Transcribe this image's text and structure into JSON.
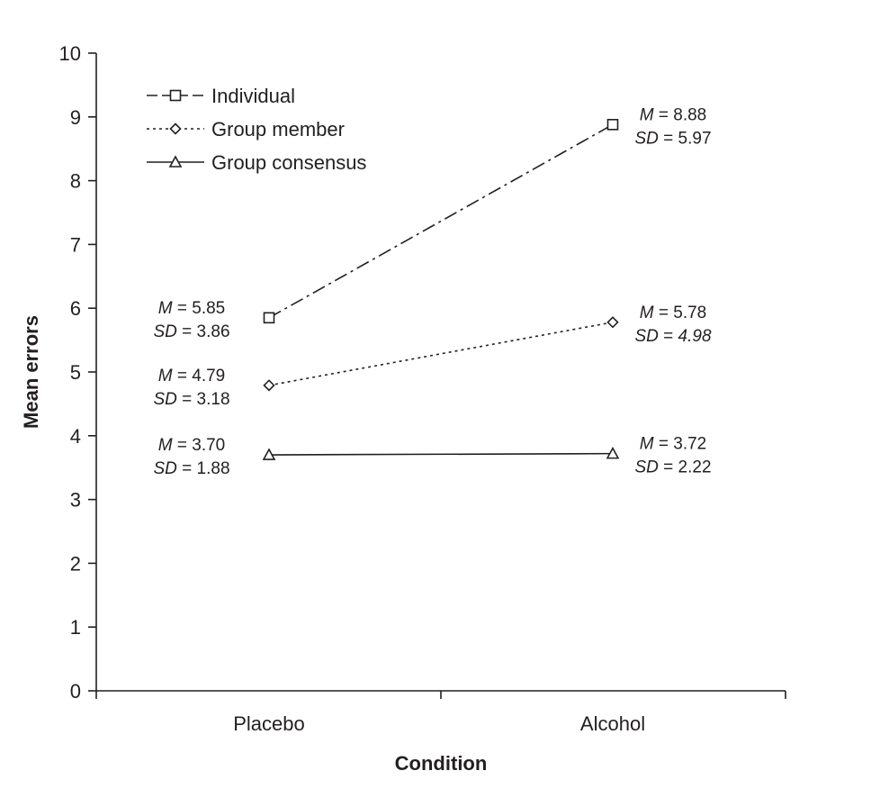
{
  "chart_data": {
    "type": "line",
    "title": "",
    "xlabel": "Condition",
    "ylabel": "Mean errors",
    "ylim": [
      0,
      10
    ],
    "yticks": [
      0,
      1,
      2,
      3,
      4,
      5,
      6,
      7,
      8,
      9,
      10
    ],
    "categories": [
      "Placebo",
      "Alcohol"
    ],
    "legend_position": "top-left",
    "grid": false,
    "series": [
      {
        "name": "Individual",
        "line_style": "dash-dot",
        "marker": "square",
        "values": [
          5.85,
          8.88
        ],
        "annotations": [
          {
            "m": "5.85",
            "sd": "3.86",
            "sd_italic": false
          },
          {
            "m": "8.88",
            "sd": "5.97",
            "sd_italic": false
          }
        ]
      },
      {
        "name": "Group member",
        "line_style": "dotted",
        "marker": "diamond",
        "values": [
          4.79,
          5.78
        ],
        "annotations": [
          {
            "m": "4.79",
            "sd": "3.18",
            "sd_italic": false
          },
          {
            "m": "5.78",
            "sd": "4.98",
            "sd_italic": true
          }
        ]
      },
      {
        "name": "Group consensus",
        "line_style": "solid",
        "marker": "triangle",
        "values": [
          3.7,
          3.72
        ],
        "annotations": [
          {
            "m": "3.70",
            "sd": "1.88",
            "sd_italic": false
          },
          {
            "m": "3.72",
            "sd": "2.22",
            "sd_italic": false
          }
        ]
      }
    ],
    "annotation_labels": {
      "m": "M",
      "sd": "SD",
      "eq": "= "
    }
  }
}
